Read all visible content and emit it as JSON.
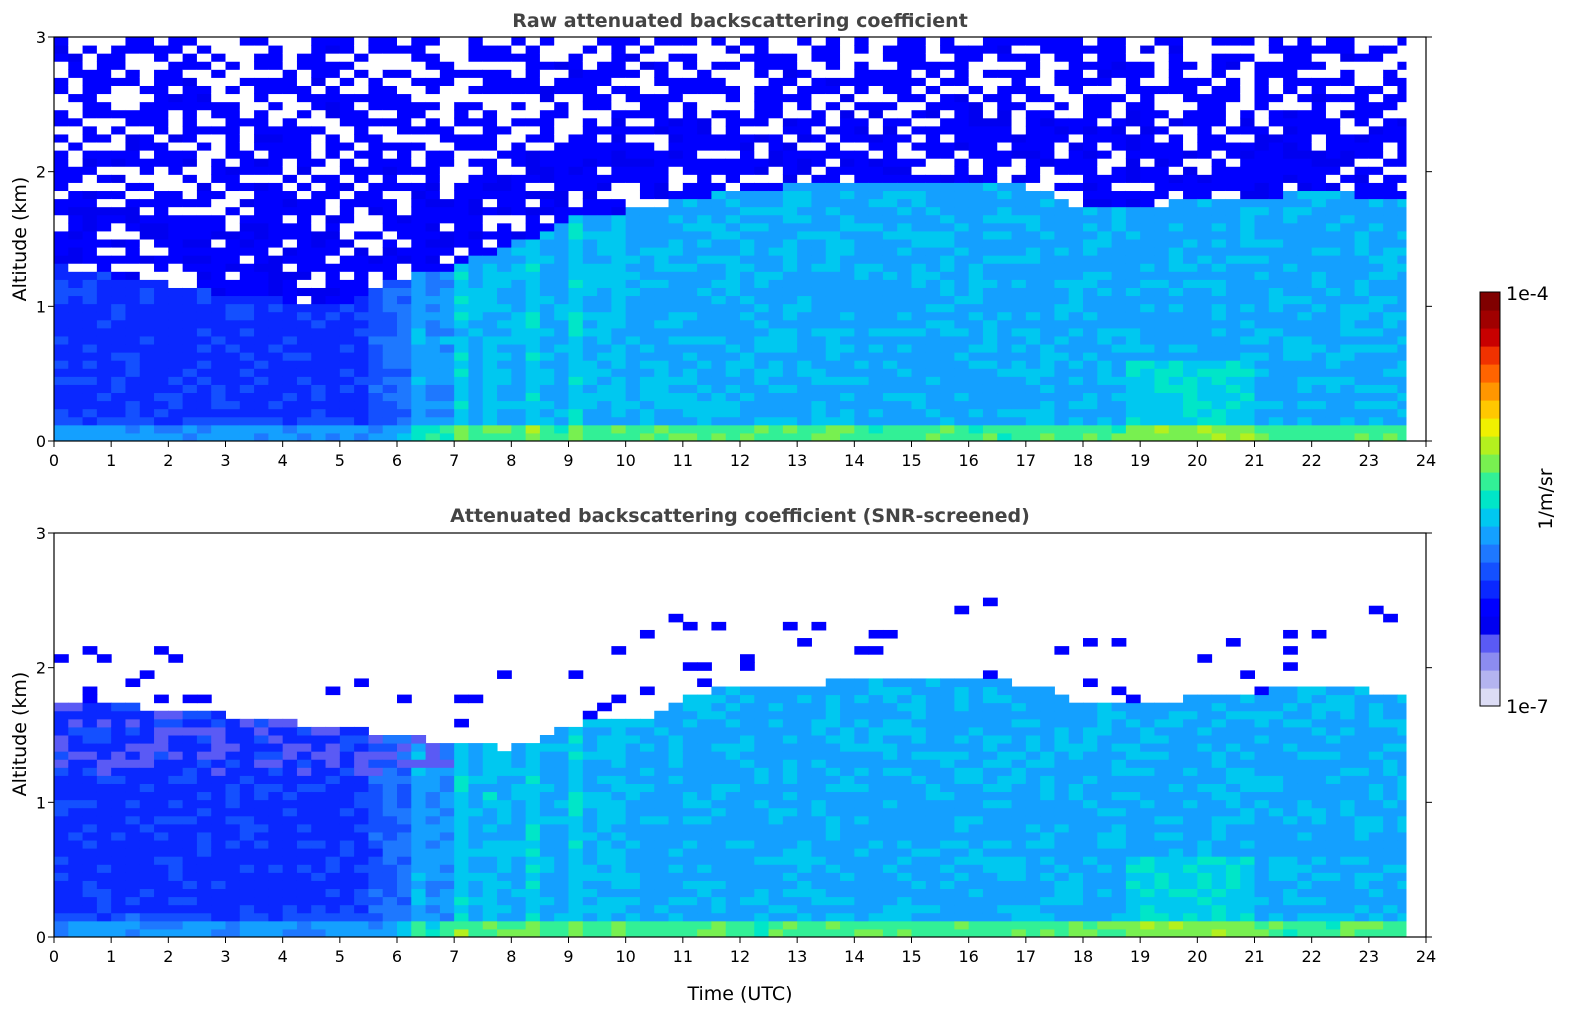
{
  "colorbar": {
    "label": "1/m/sr",
    "max_label": "1e-4",
    "min_label": "1e-7",
    "colors": [
      "#dcdcf5",
      "#b4b4f0",
      "#8c8cf0",
      "#5a5af5",
      "#0000f0",
      "#0000ff",
      "#0a28ff",
      "#1450ff",
      "#1e78ff",
      "#14a0ff",
      "#00c8f0",
      "#00e6c8",
      "#32f096",
      "#78f050",
      "#b4f01e",
      "#f0f000",
      "#ffc800",
      "#ff9600",
      "#ff6400",
      "#f03200",
      "#c80000",
      "#a00000",
      "#800000"
    ]
  },
  "chart_data": [
    {
      "type": "heatmap",
      "title": "Raw attenuated backscattering coefficient",
      "xlabel": "",
      "ylabel": "Altitude (km)",
      "xlim": [
        0,
        24
      ],
      "ylim": [
        0,
        3
      ],
      "xticks": [
        "0",
        "1",
        "2",
        "3",
        "4",
        "5",
        "6",
        "7",
        "8",
        "9",
        "10",
        "11",
        "12",
        "13",
        "14",
        "15",
        "16",
        "17",
        "18",
        "19",
        "20",
        "21",
        "22",
        "23",
        "24"
      ],
      "yticks": [
        "0",
        "1",
        "2",
        "3"
      ],
      "data_end_time": 23.65,
      "color_scale": {
        "type": "log",
        "min": 1e-07,
        "max": 0.0001,
        "units": "1/m/sr"
      },
      "noise_boundary_km": [
        [
          0,
          1.3
        ],
        [
          3,
          1.1
        ],
        [
          5,
          1.0
        ],
        [
          6,
          1.2
        ],
        [
          7,
          1.3
        ],
        [
          8,
          1.45
        ],
        [
          9,
          1.65
        ],
        [
          10,
          1.7
        ],
        [
          11,
          1.8
        ],
        [
          12,
          1.85
        ],
        [
          13,
          1.9
        ],
        [
          14,
          1.95
        ],
        [
          16,
          1.95
        ],
        [
          17,
          1.9
        ],
        [
          18,
          1.75
        ],
        [
          19,
          1.75
        ],
        [
          20,
          1.8
        ],
        [
          21,
          1.8
        ],
        [
          22,
          1.85
        ],
        [
          23.65,
          1.8
        ]
      ],
      "screened": false
    },
    {
      "type": "heatmap",
      "title": "Attenuated backscattering coefficient (SNR-screened)",
      "xlabel": "Time (UTC)",
      "ylabel": "Altitude (km)",
      "xlim": [
        0,
        24
      ],
      "ylim": [
        0,
        3
      ],
      "xticks": [
        "0",
        "1",
        "2",
        "3",
        "4",
        "5",
        "6",
        "7",
        "8",
        "9",
        "10",
        "11",
        "12",
        "13",
        "14",
        "15",
        "16",
        "17",
        "18",
        "19",
        "20",
        "21",
        "22",
        "23",
        "24"
      ],
      "yticks": [
        "0",
        "1",
        "2",
        "3"
      ],
      "data_end_time": 23.65,
      "color_scale": {
        "type": "log",
        "min": 1e-07,
        "max": 0.0001,
        "units": "1/m/sr"
      },
      "layer_top_km": [
        [
          0,
          1.75
        ],
        [
          2,
          1.7
        ],
        [
          4,
          1.6
        ],
        [
          5,
          1.55
        ],
        [
          6,
          1.5
        ],
        [
          7,
          1.45
        ],
        [
          8,
          1.4
        ],
        [
          9,
          1.55
        ],
        [
          9.5,
          1.65
        ],
        [
          10,
          1.6
        ],
        [
          10.6,
          1.65
        ],
        [
          11,
          1.8
        ],
        [
          12,
          1.85
        ],
        [
          13,
          1.88
        ],
        [
          14,
          1.9
        ],
        [
          15,
          1.92
        ],
        [
          16,
          1.95
        ],
        [
          17,
          1.88
        ],
        [
          18,
          1.75
        ],
        [
          19,
          1.75
        ],
        [
          20,
          1.78
        ],
        [
          21,
          1.82
        ],
        [
          22,
          1.85
        ],
        [
          23.65,
          1.82
        ]
      ],
      "screened": true
    }
  ]
}
